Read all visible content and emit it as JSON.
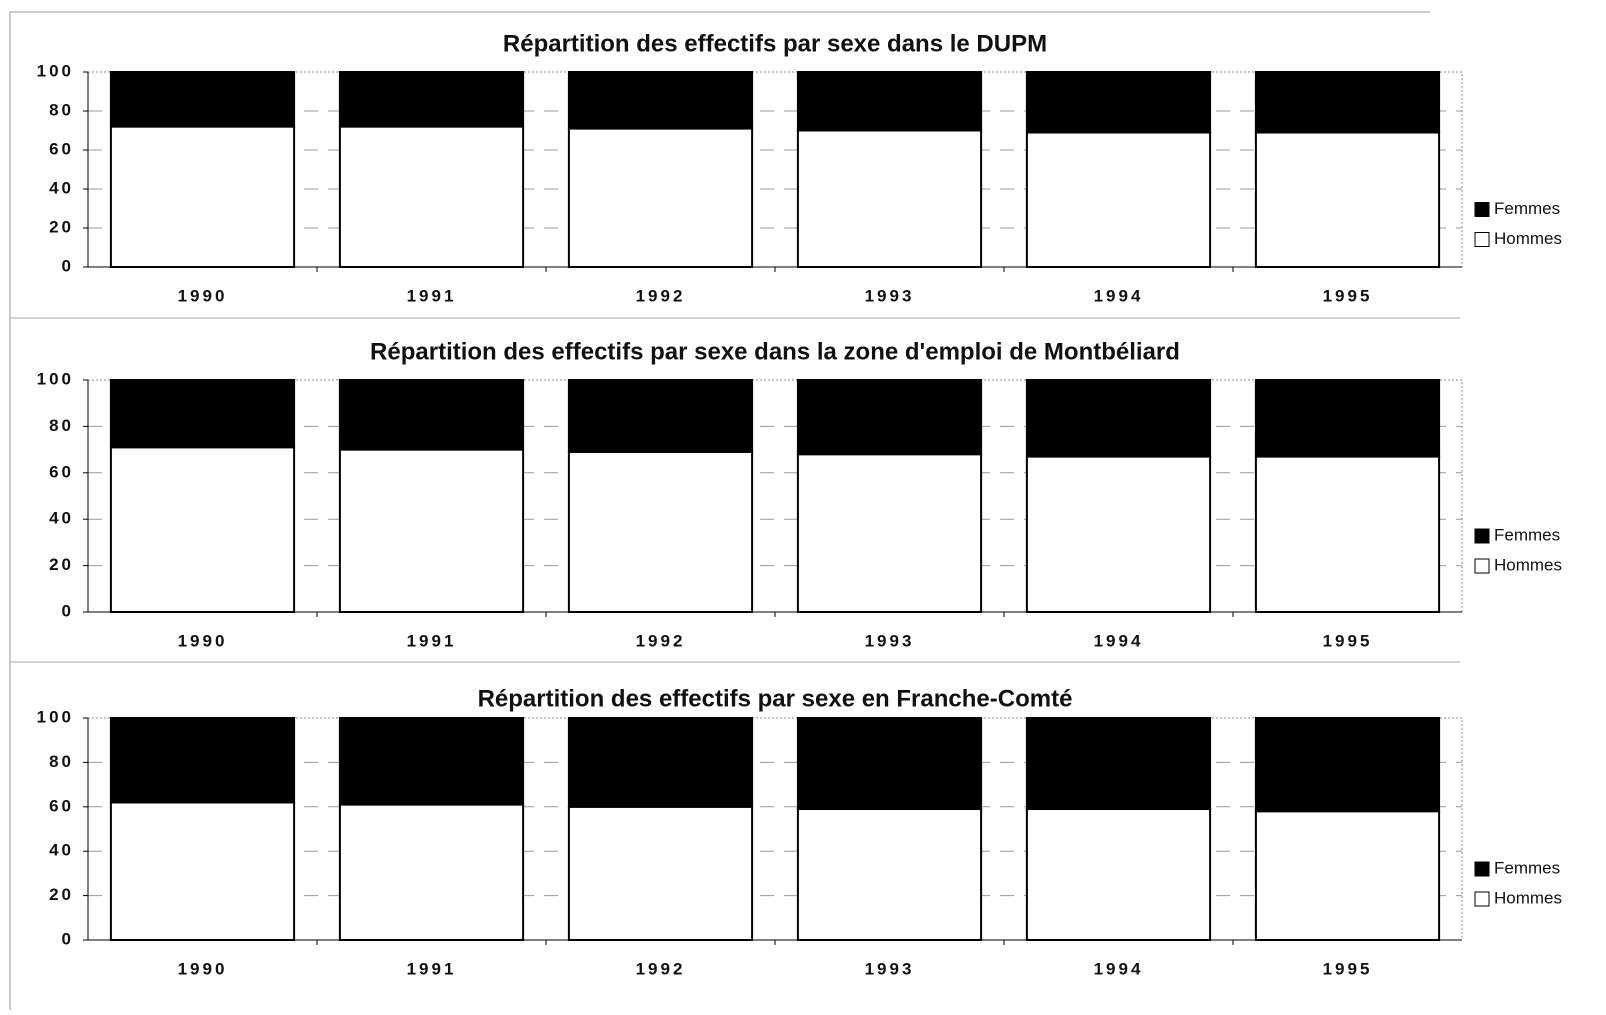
{
  "chart_data": [
    {
      "type": "bar",
      "stacked": true,
      "title": "Répartition des effectifs par sexe dans le DUPM",
      "categories": [
        "1990",
        "1991",
        "1992",
        "1993",
        "1994",
        "1995"
      ],
      "series": [
        {
          "name": "Hommes",
          "color": "#ffffff",
          "values": [
            72,
            72,
            71,
            70,
            69,
            69
          ]
        },
        {
          "name": "Femmes",
          "color": "#000000",
          "values": [
            28,
            28,
            29,
            30,
            31,
            31
          ]
        }
      ],
      "ylim": [
        0,
        100
      ],
      "yticks": [
        0,
        20,
        40,
        60,
        80,
        100
      ],
      "grid": true,
      "legend": "right"
    },
    {
      "type": "bar",
      "stacked": true,
      "title": "Répartition des effectifs par sexe dans la zone d'emploi de Montbéliard",
      "categories": [
        "1990",
        "1991",
        "1992",
        "1993",
        "1994",
        "1995"
      ],
      "series": [
        {
          "name": "Hommes",
          "color": "#ffffff",
          "values": [
            71,
            70,
            69,
            68,
            67,
            67
          ]
        },
        {
          "name": "Femmes",
          "color": "#000000",
          "values": [
            29,
            30,
            31,
            32,
            33,
            33
          ]
        }
      ],
      "ylim": [
        0,
        100
      ],
      "yticks": [
        0,
        20,
        40,
        60,
        80,
        100
      ],
      "grid": true,
      "legend": "right"
    },
    {
      "type": "bar",
      "stacked": true,
      "title": "Répartition des effectifs par sexe en Franche-Comté",
      "categories": [
        "1990",
        "1991",
        "1992",
        "1993",
        "1994",
        "1995"
      ],
      "series": [
        {
          "name": "Hommes",
          "color": "#ffffff",
          "values": [
            62,
            61,
            60,
            59,
            59,
            58
          ]
        },
        {
          "name": "Femmes",
          "color": "#000000",
          "values": [
            38,
            39,
            40,
            41,
            41,
            42
          ]
        }
      ],
      "ylim": [
        0,
        100
      ],
      "yticks": [
        0,
        20,
        40,
        60,
        80,
        100
      ],
      "grid": true,
      "legend": "right"
    }
  ]
}
